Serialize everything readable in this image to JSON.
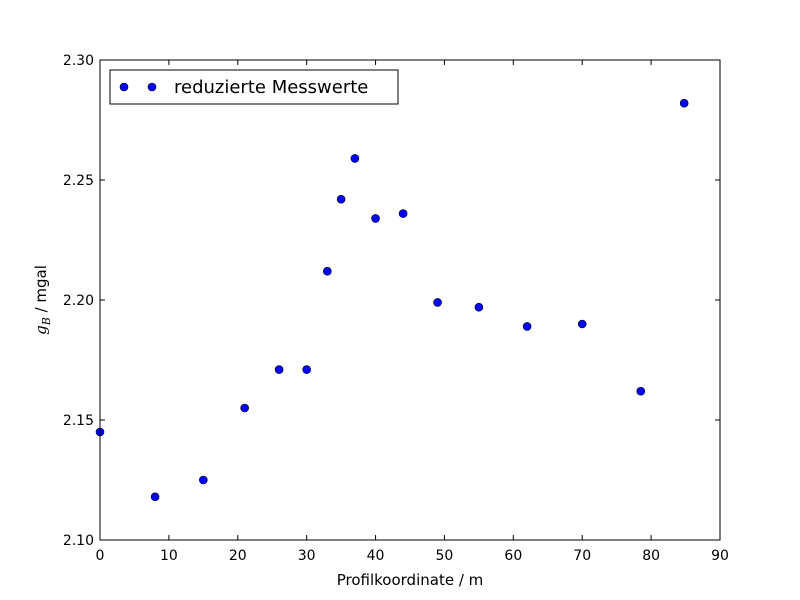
{
  "chart_data": {
    "type": "scatter",
    "title": "",
    "xlabel": "Profilkoordinate / m",
    "ylabel_math": "g",
    "ylabel_sub": "B",
    "ylabel_unit": " / mgal",
    "xlim": [
      0,
      90
    ],
    "ylim": [
      2.1,
      2.3
    ],
    "xticks": [
      0,
      10,
      20,
      30,
      40,
      50,
      60,
      70,
      80,
      90
    ],
    "yticks": [
      2.1,
      2.15,
      2.2,
      2.25,
      2.3
    ],
    "xtick_labels": [
      "0",
      "10",
      "20",
      "30",
      "40",
      "50",
      "60",
      "70",
      "80",
      "90"
    ],
    "ytick_labels": [
      "2.10",
      "2.15",
      "2.20",
      "2.25",
      "2.30"
    ],
    "grid": false,
    "legend_position": "top-left",
    "series": [
      {
        "name": "reduzierte Messwerte",
        "color": "#0000ff",
        "marker": "circle",
        "x": [
          0,
          8,
          15,
          21,
          26,
          30,
          33,
          35,
          37,
          40,
          44,
          49,
          55,
          62,
          70,
          78.5,
          84.8
        ],
        "y": [
          2.145,
          2.118,
          2.125,
          2.155,
          2.171,
          2.171,
          2.212,
          2.242,
          2.259,
          2.234,
          2.236,
          2.199,
          2.197,
          2.189,
          2.19,
          2.162,
          2.282
        ]
      }
    ]
  }
}
